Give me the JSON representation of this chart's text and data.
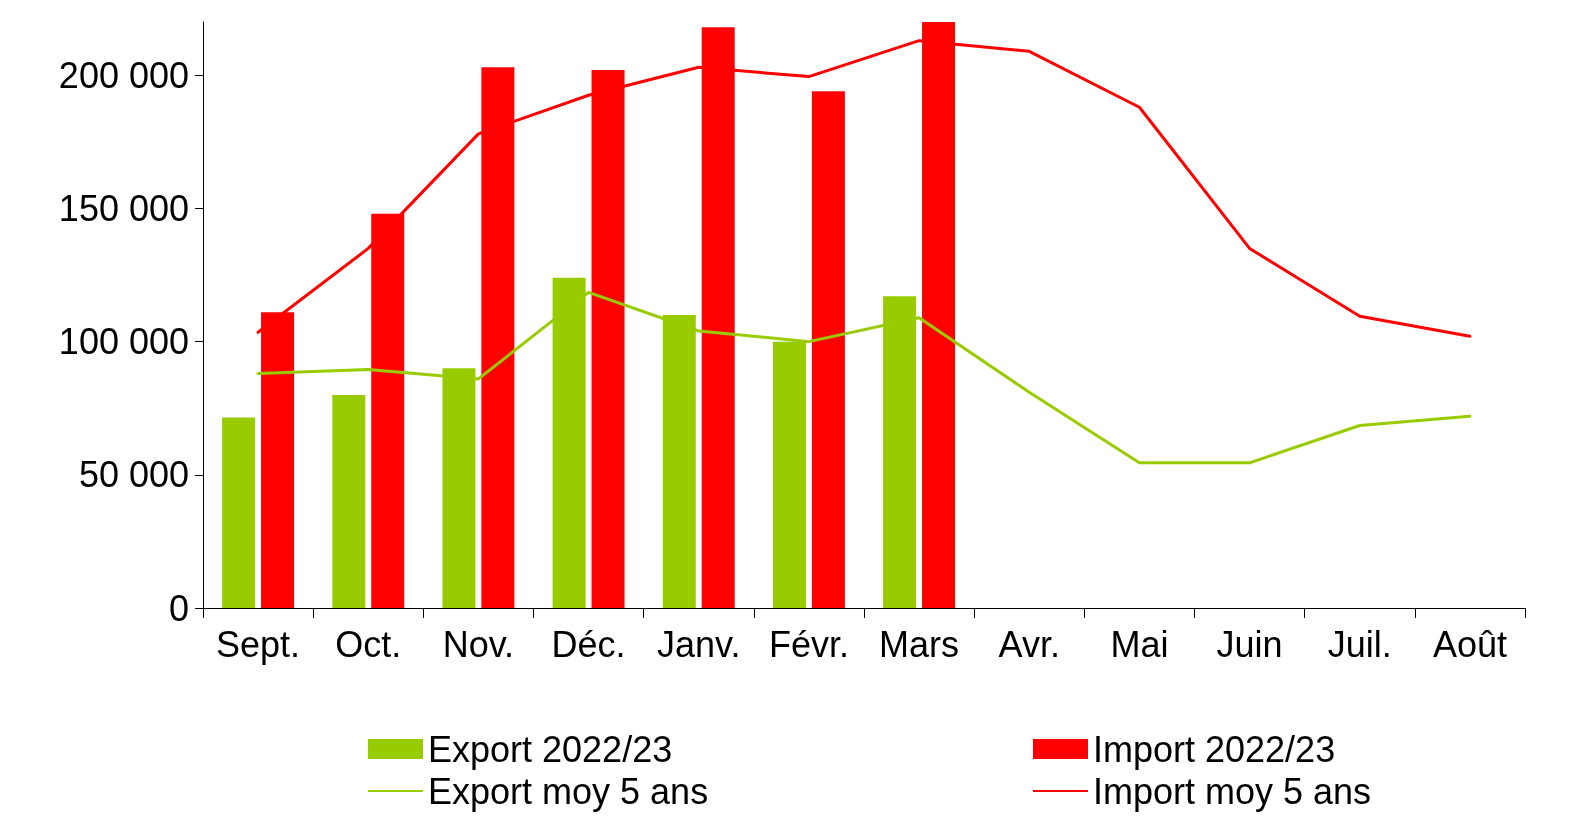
{
  "chart_data": {
    "type": "bar",
    "categories": [
      "Sept.",
      "Oct.",
      "Nov.",
      "Déc.",
      "Janv.",
      "Févr.",
      "Mars",
      "Avr.",
      "Mai",
      "Juin",
      "Juil.",
      "Août"
    ],
    "series": [
      {
        "name": "Export 2022/23",
        "color": "#99cc00",
        "values": [
          71500,
          80000,
          90000,
          124000,
          110000,
          100000,
          117000,
          null,
          null,
          null,
          null,
          null
        ]
      },
      {
        "name": "Import 2022/23",
        "color": "#ff0000",
        "values": [
          111000,
          148000,
          203000,
          202000,
          218000,
          194000,
          220000,
          null,
          null,
          null,
          null,
          null
        ]
      },
      {
        "name": "Export moy 5 ans",
        "type": "line",
        "color": "#99cc00",
        "values": [
          88000,
          89500,
          86000,
          118500,
          104000,
          100000,
          109000,
          81000,
          54500,
          54500,
          68500,
          72000
        ]
      },
      {
        "name": "Import moy 5 ans",
        "type": "line",
        "color": "#ff0000",
        "values": [
          103500,
          135000,
          178000,
          192500,
          203000,
          199500,
          213000,
          209000,
          188000,
          135000,
          109500,
          102000
        ]
      }
    ],
    "ylim": [
      0,
      220000
    ],
    "yticks": [
      {
        "value": 0,
        "label": "0"
      },
      {
        "value": 50000,
        "label": "50 000"
      },
      {
        "value": 100000,
        "label": "100 000"
      },
      {
        "value": 150000,
        "label": "150 000"
      },
      {
        "value": 200000,
        "label": "200 000"
      }
    ],
    "grid": false,
    "legend": "bottom",
    "marker": "none",
    "line_style": "solid"
  }
}
